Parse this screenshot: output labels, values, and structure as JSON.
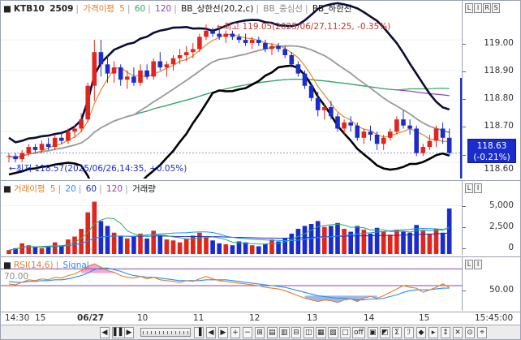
{
  "price_pane": {
    "legend": {
      "symbol": "KTB10",
      "contract": "2509",
      "ma_label": "가격이평",
      "ma_periods": [
        "5",
        "60",
        "120"
      ],
      "bb_upper": "BB_상한선(20,2,c)",
      "bb_mid": "BB_중심선",
      "bb_lower": "BB_하한선"
    },
    "high_annotation": "←최고 119.05(2025/06/27,11:25, -0.35%)",
    "low_annotation": "←최저 118.57(2025/06/26,14:35, +0.05%)",
    "axis_buttons": [
      "L",
      "I",
      "R",
      "S"
    ],
    "y_ticks": [
      "119.00",
      "118.90",
      "118.80",
      "118.70",
      "118.60"
    ],
    "current_price": "118.63",
    "current_change": "(-0.21%)"
  },
  "volume_pane": {
    "legend": {
      "ma_label": "거래이평",
      "ma_periods": [
        "5",
        "20",
        "60",
        "120"
      ],
      "volume_label": "거래량"
    },
    "axis_buttons": [
      "L",
      "I"
    ],
    "y_ticks": [
      "5,000",
      "2,500",
      "0"
    ]
  },
  "rsi_pane": {
    "legend": {
      "rsi_label": "RSI(14,6)",
      "signal_label": "Signal"
    },
    "axis_buttons": [
      "L",
      "I"
    ],
    "level_upper": "70.00",
    "y_ticks": [
      "50.00"
    ]
  },
  "x_axis": {
    "labels": [
      "14:30",
      "15",
      "06/27",
      "10",
      "11",
      "12",
      "13",
      "14",
      "15",
      "15:45:00"
    ]
  },
  "toolbar": {
    "buttons": [
      "◀",
      "▌▌",
      "▶",
      "▐",
      "◀",
      "▶",
      "+",
      "−",
      "⊞",
      "▤",
      "▥",
      "⊟",
      "◫",
      "▦",
      "▧",
      "□",
      "off",
      "▣",
      "◩",
      "Σ",
      "ℐ",
      "◆",
      "▸",
      "↕",
      "✕",
      "⊙",
      "⌖"
    ]
  },
  "colors": {
    "up": "#e1251b",
    "down": "#1a2ccc",
    "bb_band": "#0b0b3a",
    "bb_mid": "#999999",
    "ma5": "#e67e22",
    "ma60": "#27ae60",
    "ma120": "#8e44ad"
  },
  "chart_data": [
    {
      "type": "candlestick",
      "title": "KTB10 2509",
      "ylim": [
        118.56,
        119.08
      ],
      "x_labels": [
        "14:30",
        "15",
        "06/27",
        "10",
        "11",
        "12",
        "13",
        "14",
        "15"
      ],
      "candles": [
        [
          118.62,
          118.63,
          118.6,
          118.62
        ],
        [
          118.62,
          118.63,
          118.6,
          118.61
        ],
        [
          118.61,
          118.64,
          118.6,
          118.63
        ],
        [
          118.63,
          118.66,
          118.62,
          118.65
        ],
        [
          118.65,
          118.66,
          118.63,
          118.64
        ],
        [
          118.64,
          118.67,
          118.63,
          118.66
        ],
        [
          118.66,
          118.68,
          118.64,
          118.65
        ],
        [
          118.65,
          118.69,
          118.64,
          118.68
        ],
        [
          118.68,
          118.7,
          118.66,
          118.67
        ],
        [
          118.67,
          118.71,
          118.66,
          118.7
        ],
        [
          118.7,
          118.72,
          118.68,
          118.71
        ],
        [
          118.71,
          118.76,
          118.7,
          118.74
        ],
        [
          118.74,
          118.86,
          118.73,
          118.85
        ],
        [
          118.85,
          119.0,
          118.8,
          118.96
        ],
        [
          118.96,
          119.0,
          118.88,
          118.92
        ],
        [
          118.92,
          118.95,
          118.86,
          118.89
        ],
        [
          118.89,
          118.93,
          118.86,
          118.91
        ],
        [
          118.91,
          118.92,
          118.85,
          118.87
        ],
        [
          118.87,
          118.9,
          118.84,
          118.88
        ],
        [
          118.88,
          118.91,
          118.85,
          118.86
        ],
        [
          118.86,
          118.92,
          118.85,
          118.9
        ],
        [
          118.9,
          118.92,
          118.87,
          118.88
        ],
        [
          118.88,
          118.94,
          118.87,
          118.93
        ],
        [
          118.93,
          118.96,
          118.9,
          118.91
        ],
        [
          118.91,
          118.93,
          118.88,
          118.92
        ],
        [
          118.92,
          118.95,
          118.9,
          118.94
        ],
        [
          118.94,
          118.97,
          118.92,
          118.95
        ],
        [
          118.95,
          118.98,
          118.93,
          118.96
        ],
        [
          118.96,
          118.99,
          118.94,
          118.97
        ],
        [
          118.97,
          119.02,
          118.96,
          119.01
        ],
        [
          119.01,
          119.05,
          119.0,
          119.03
        ],
        [
          119.03,
          119.04,
          119.01,
          119.02
        ],
        [
          119.02,
          119.04,
          119.0,
          119.01
        ],
        [
          119.01,
          119.03,
          118.99,
          119.02
        ],
        [
          119.02,
          119.03,
          119.0,
          119.01
        ],
        [
          119.01,
          119.02,
          118.99,
          119.0
        ],
        [
          119.0,
          119.02,
          118.98,
          118.99
        ],
        [
          118.99,
          119.01,
          118.97,
          119.0
        ],
        [
          119.0,
          119.01,
          118.98,
          118.99
        ],
        [
          118.99,
          119.0,
          118.96,
          118.97
        ],
        [
          118.97,
          118.99,
          118.95,
          118.98
        ],
        [
          118.98,
          118.99,
          118.96,
          118.97
        ],
        [
          118.97,
          118.98,
          118.94,
          118.95
        ],
        [
          118.95,
          118.96,
          118.91,
          118.92
        ],
        [
          118.92,
          118.93,
          118.88,
          118.89
        ],
        [
          118.89,
          118.9,
          118.84,
          118.85
        ],
        [
          118.85,
          118.86,
          118.8,
          118.81
        ],
        [
          118.81,
          118.83,
          118.75,
          118.77
        ],
        [
          118.77,
          118.79,
          118.74,
          118.78
        ],
        [
          118.78,
          118.8,
          118.74,
          118.75
        ],
        [
          118.75,
          118.76,
          118.7,
          118.71
        ],
        [
          118.71,
          118.74,
          118.69,
          118.73
        ],
        [
          118.73,
          118.75,
          118.7,
          118.72
        ],
        [
          118.72,
          118.73,
          118.67,
          118.68
        ],
        [
          118.68,
          118.71,
          118.66,
          118.7
        ],
        [
          118.7,
          118.72,
          118.67,
          118.69
        ],
        [
          118.69,
          118.7,
          118.64,
          118.66
        ],
        [
          118.66,
          118.69,
          118.64,
          118.68
        ],
        [
          118.68,
          118.71,
          118.67,
          118.7
        ],
        [
          118.7,
          118.75,
          118.69,
          118.74
        ],
        [
          118.74,
          118.77,
          118.71,
          118.72
        ],
        [
          118.72,
          118.74,
          118.69,
          118.71
        ],
        [
          118.71,
          118.72,
          118.62,
          118.63
        ],
        [
          118.63,
          118.66,
          118.62,
          118.65
        ],
        [
          118.65,
          118.69,
          118.64,
          118.67
        ],
        [
          118.67,
          118.72,
          118.65,
          118.71
        ],
        [
          118.71,
          118.73,
          118.66,
          118.68
        ],
        [
          118.68,
          118.71,
          118.62,
          118.63
        ]
      ],
      "last": 118.63
    },
    {
      "type": "bar",
      "title": "거래량",
      "ylim": [
        0,
        6200
      ],
      "values": [
        400,
        600,
        1100,
        900,
        700,
        600,
        800,
        1200,
        900,
        1500,
        1800,
        2600,
        4300,
        5400,
        3400,
        2900,
        2200,
        1900,
        1600,
        1800,
        2100,
        1600,
        2400,
        1900,
        1500,
        1400,
        1200,
        1600,
        1900,
        2200,
        1700,
        1400,
        1100,
        1000,
        900,
        1300,
        1200,
        900,
        800,
        1000,
        1500,
        1300,
        1600,
        2100,
        2600,
        2900,
        3100,
        3400,
        2800,
        2900,
        3200,
        2600,
        2300,
        2900,
        2500,
        2100,
        2700,
        2300,
        2000,
        2500,
        2300,
        2200,
        3000,
        2400,
        2100,
        2600,
        2200,
        4700
      ]
    },
    {
      "type": "line",
      "title": "RSI(14,6)",
      "ylim": [
        20,
        80
      ],
      "series": [
        {
          "name": "RSI(14,6)",
          "values": [
            52,
            51,
            54,
            57,
            56,
            58,
            57,
            60,
            59,
            62,
            64,
            68,
            73,
            76,
            72,
            68,
            66,
            62,
            60,
            59,
            61,
            58,
            60,
            57,
            56,
            55,
            54,
            56,
            55,
            58,
            61,
            58,
            56,
            55,
            54,
            53,
            52,
            51,
            50,
            48,
            47,
            46,
            44,
            41,
            38,
            35,
            33,
            31,
            33,
            32,
            30,
            33,
            34,
            31,
            35,
            37,
            35,
            38,
            42,
            46,
            50,
            48,
            47,
            42,
            45,
            48,
            52,
            48
          ]
        },
        {
          "name": "Signal",
          "values": [
            55,
            54,
            54,
            55,
            55,
            56,
            56,
            57,
            57,
            58,
            60,
            62,
            65,
            69,
            71,
            71,
            69,
            67,
            64,
            62,
            61,
            60,
            60,
            59,
            58,
            57,
            56,
            56,
            56,
            56,
            57,
            57,
            57,
            57,
            56,
            55,
            54,
            53,
            52,
            51,
            50,
            49,
            48,
            46,
            44,
            42,
            40,
            38,
            37,
            36,
            35,
            35,
            34,
            33,
            33,
            34,
            34,
            35,
            37,
            39,
            42,
            44,
            45,
            45,
            45,
            46,
            47,
            47
          ]
        }
      ],
      "levels": [
        70,
        50
      ]
    }
  ]
}
